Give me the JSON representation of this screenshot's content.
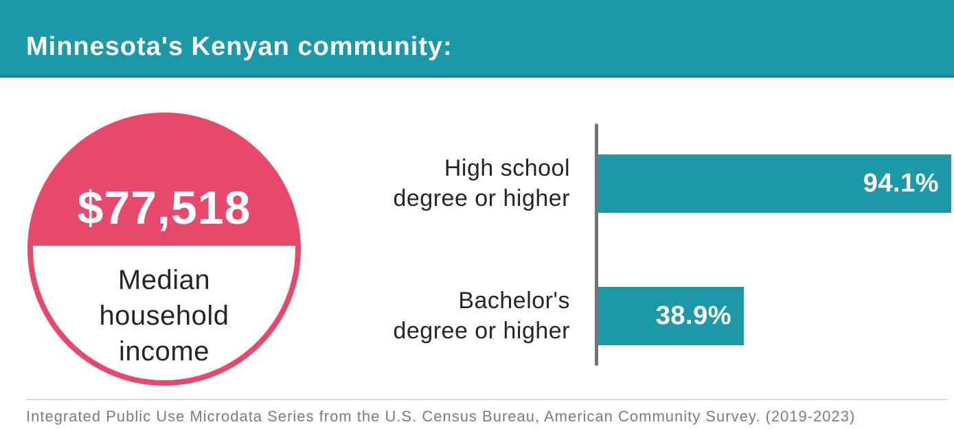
{
  "header": {
    "title": "Minnesota's Kenyan community:"
  },
  "stat_circle": {
    "value": "$77,518",
    "label_lines": [
      "Median",
      "household",
      "income"
    ]
  },
  "chart_data": {
    "type": "bar",
    "orientation": "horizontal",
    "title": "",
    "categories": [
      "High school degree or higher",
      "Bachelor's degree or higher"
    ],
    "category_lines": [
      [
        "High school",
        "degree or higher"
      ],
      [
        "Bachelor's",
        "degree or higher"
      ]
    ],
    "values": [
      94.1,
      38.9
    ],
    "value_labels": [
      "94.1%",
      "38.9%"
    ],
    "xlim": [
      0,
      100
    ],
    "grid": false,
    "legend": false,
    "bar_color": "#1b99a8",
    "axis_color": "#757575"
  },
  "footer": {
    "source": "Integrated Public Use Microdata Series from the U.S. Census Bureau, American Community Survey. (2019-2023)"
  },
  "colors": {
    "header_teal": "#1b99a8",
    "header_teal_dark": "#12818e",
    "circle_pink": "#e8486a",
    "text_dark": "#272425",
    "value_text_white": "#ffffff",
    "footer_gray": "#7c7c7c",
    "divider_gray": "#d9d9d9",
    "background": "#ffffff"
  }
}
